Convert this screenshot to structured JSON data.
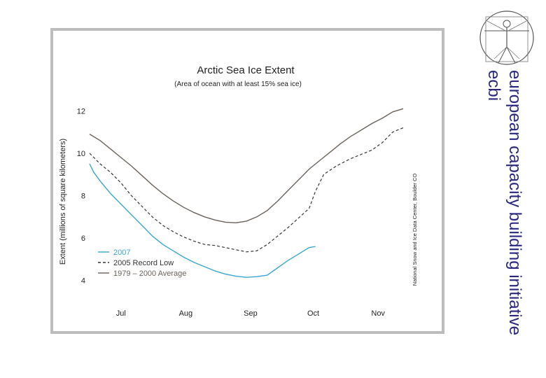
{
  "organization": {
    "name": "european capacity building initiative",
    "acronym": "ecbi",
    "logo_icon": "vitruvian-man-icon"
  },
  "colors": {
    "series_2007": "#3aa6cf",
    "series_2005": "#333333",
    "series_avg": "#6b625a",
    "org_text": "#2b2780"
  },
  "chart_data": {
    "type": "line",
    "title": "Arctic Sea Ice Extent",
    "subtitle": "(Area of ocean with at least 15% sea ice)",
    "ylabel": "Extent (millions of square kilometers)",
    "xlabel": "",
    "credit": "National Snow and Ice Data Center, Boulder CO",
    "ylim": [
      3,
      13
    ],
    "xlim": [
      0,
      150
    ],
    "yticks": [
      4,
      6,
      8,
      10,
      12
    ],
    "xticks": [
      {
        "label": "Jul",
        "x": 15
      },
      {
        "label": "Aug",
        "x": 46
      },
      {
        "label": "Sep",
        "x": 77
      },
      {
        "label": "Oct",
        "x": 107
      },
      {
        "label": "Nov",
        "x": 138
      }
    ],
    "legend": {
      "position": "bottom-left"
    },
    "series": [
      {
        "name": "2007",
        "style": "solid",
        "x": [
          0,
          2,
          5,
          10,
          15,
          20,
          25,
          30,
          35,
          40,
          45,
          50,
          55,
          60,
          65,
          70,
          75,
          80,
          85,
          90,
          95,
          100,
          105,
          108
        ],
        "y": [
          9.5,
          9.1,
          8.7,
          8.1,
          7.6,
          7.1,
          6.6,
          6.1,
          5.7,
          5.4,
          5.1,
          4.85,
          4.65,
          4.45,
          4.3,
          4.2,
          4.15,
          4.18,
          4.25,
          4.6,
          4.95,
          5.25,
          5.55,
          5.6
        ]
      },
      {
        "name": "2005 Record Low",
        "style": "dashed",
        "x": [
          0,
          5,
          10,
          15,
          20,
          25,
          30,
          35,
          40,
          45,
          50,
          55,
          60,
          65,
          70,
          75,
          80,
          85,
          90,
          95,
          100,
          105,
          108,
          112,
          118,
          125,
          130,
          135,
          140,
          145,
          150
        ],
        "y": [
          10.0,
          9.5,
          9.1,
          8.6,
          8.0,
          7.5,
          7.0,
          6.6,
          6.3,
          6.05,
          5.85,
          5.7,
          5.65,
          5.55,
          5.45,
          5.35,
          5.4,
          5.7,
          6.1,
          6.5,
          6.95,
          7.4,
          8.2,
          9.0,
          9.4,
          9.75,
          9.95,
          10.15,
          10.5,
          11.0,
          11.2
        ]
      },
      {
        "name": "1979 – 2000 Average",
        "style": "solid",
        "x": [
          0,
          5,
          10,
          15,
          20,
          25,
          30,
          35,
          40,
          45,
          50,
          55,
          60,
          65,
          70,
          75,
          80,
          85,
          90,
          95,
          100,
          105,
          110,
          115,
          120,
          125,
          130,
          135,
          140,
          145,
          150
        ],
        "y": [
          10.9,
          10.6,
          10.2,
          9.8,
          9.4,
          8.95,
          8.5,
          8.1,
          7.75,
          7.45,
          7.2,
          7.0,
          6.85,
          6.75,
          6.72,
          6.8,
          7.0,
          7.3,
          7.75,
          8.25,
          8.75,
          9.25,
          9.65,
          10.05,
          10.45,
          10.8,
          11.1,
          11.4,
          11.65,
          11.95,
          12.1
        ]
      }
    ]
  }
}
